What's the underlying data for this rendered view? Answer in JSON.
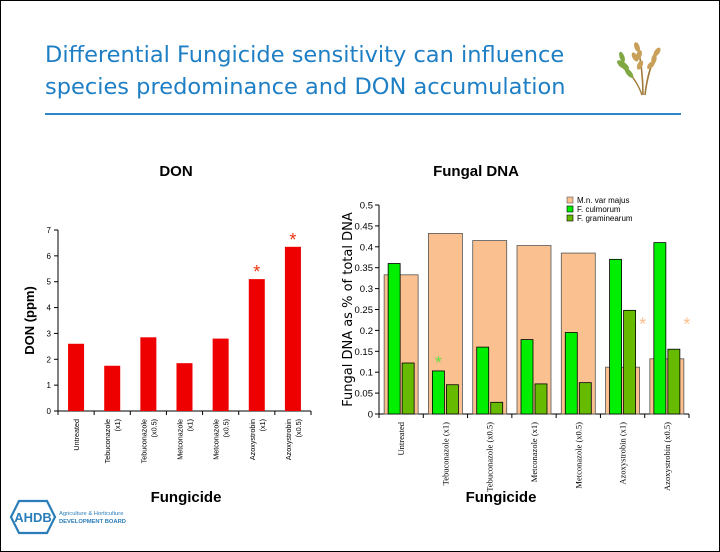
{
  "slide": {
    "title_line1": "Differential Fungicide sensitivity can influence",
    "title_line2": "species predominance and DON accumulation",
    "logo": {
      "name": "AHDB",
      "line1": "Agriculture & Horticulture",
      "line2": "DEVELOPMENT BOARD",
      "color": "#2a7db8"
    },
    "accent_color": "#1f7fc4"
  },
  "chart_data": [
    {
      "type": "bar",
      "title": "DON",
      "xlabel": "Fungicide",
      "ylabel": "DON (ppm)",
      "ylim": [
        0,
        7
      ],
      "yticks": [
        "0",
        "1",
        "2",
        "3",
        "4",
        "5",
        "6",
        "7"
      ],
      "categories": [
        [
          "Untreated"
        ],
        [
          "Tebuconazole",
          "(x1)"
        ],
        [
          "Tebuconazole",
          "(x0.5)"
        ],
        [
          "Metconazole",
          "(x1)"
        ],
        [
          "Metconazole",
          "(x0.5)"
        ],
        [
          "Azoxystrobin",
          "(x1)"
        ],
        [
          "Azoxystrobin",
          "(x0.5)"
        ]
      ],
      "values": [
        2.6,
        1.75,
        2.85,
        1.85,
        2.8,
        5.1,
        6.35
      ],
      "color": "#ee0000",
      "annotations": [
        {
          "category_index": 5,
          "text": "*",
          "color": "#ee3311"
        },
        {
          "category_index": 6,
          "text": "*",
          "color": "#ee3311"
        }
      ],
      "grid": false
    },
    {
      "type": "bar",
      "title": "Fungal DNA",
      "xlabel": "Fungicide",
      "ylabel": "Fungal DNA as % of total DNA",
      "ylim": [
        0,
        0.5
      ],
      "yticks": [
        "0",
        "0.05",
        "0.1",
        "0.15",
        "0.2",
        "0.25",
        "0.3",
        "0.35",
        "0.4",
        "0.45",
        "0.5"
      ],
      "categories": [
        "Untreated",
        "Tebuconazole (x1)",
        "Tebuconazole (x0.5)",
        "Metconazole (x1)",
        "Metconazole (x0.5)",
        "Azoxystrobin (x1)",
        "Azoxystrobin (x0.5)"
      ],
      "series": [
        {
          "name": "M.n. var majus",
          "values": [
            0.333,
            0.432,
            0.415,
            0.403,
            0.385,
            0.112,
            0.132
          ],
          "color": "#fac090",
          "stroke": "#555555"
        },
        {
          "name": "F. culmorum",
          "values": [
            0.36,
            0.103,
            0.16,
            0.178,
            0.195,
            0.37,
            0.41
          ],
          "color": "#00ee00",
          "stroke": "#000000"
        },
        {
          "name": "F. graminearum",
          "values": [
            0.122,
            0.07,
            0.028,
            0.072,
            0.075,
            0.248,
            0.155
          ],
          "color": "#66bb00",
          "stroke": "#000000"
        }
      ],
      "annotations": [
        {
          "category_index": 1,
          "text": "*",
          "color": "#66dd44"
        },
        {
          "category_index": 5,
          "text": "*",
          "color": "#fac090"
        },
        {
          "category_index": 6,
          "text": "*",
          "color": "#fac090"
        }
      ],
      "legend": "top-right",
      "grid": false
    }
  ]
}
